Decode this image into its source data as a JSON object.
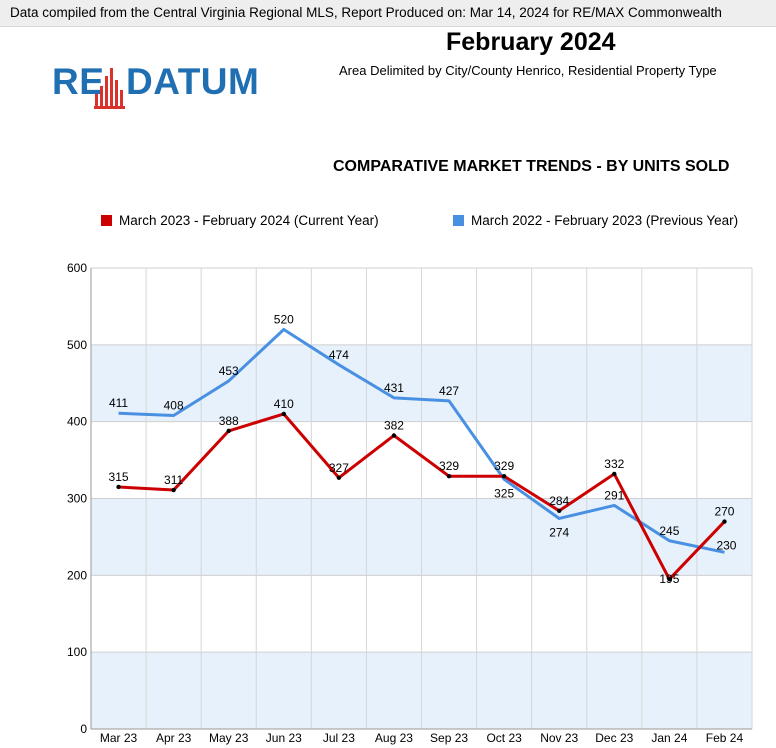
{
  "header": {
    "source_note": "Data compiled from the Central Virginia Regional MLS, Report Produced on: Mar 14, 2024 for RE/MAX Commonwealth",
    "title": "February 2024",
    "subtitle": "Area Delimited by City/County Henrico, Residential Property Type",
    "logo_left": "RE",
    "logo_right": "DATUM"
  },
  "colors": {
    "current": "#cc0000",
    "previous": "#4a90e2",
    "band": "#e6f1fc",
    "logo": "#1f6fb2",
    "logo_bars": "#d9312b"
  },
  "chart_data": {
    "type": "line",
    "title": "COMPARATIVE MARKET TRENDS - BY UNITS SOLD",
    "categories": [
      "Mar 23",
      "Apr 23",
      "May 23",
      "Jun 23",
      "Jul 23",
      "Aug 23",
      "Sep 23",
      "Oct 23",
      "Nov 23",
      "Dec 23",
      "Jan 24",
      "Feb 24"
    ],
    "ylim": [
      0,
      600
    ],
    "yticks": [
      0,
      100,
      200,
      300,
      400,
      500,
      600
    ],
    "legend_position": "top",
    "series": [
      {
        "name": "March 2023 - February 2024 (Current Year)",
        "color": "#cc0000",
        "values": [
          315,
          311,
          388,
          410,
          327,
          382,
          329,
          329,
          284,
          332,
          195,
          270
        ]
      },
      {
        "name": "March 2022 - February 2023 (Previous Year)",
        "color": "#4a90e2",
        "values": [
          411,
          408,
          453,
          520,
          474,
          431,
          427,
          325,
          274,
          291,
          245,
          230
        ]
      }
    ]
  }
}
